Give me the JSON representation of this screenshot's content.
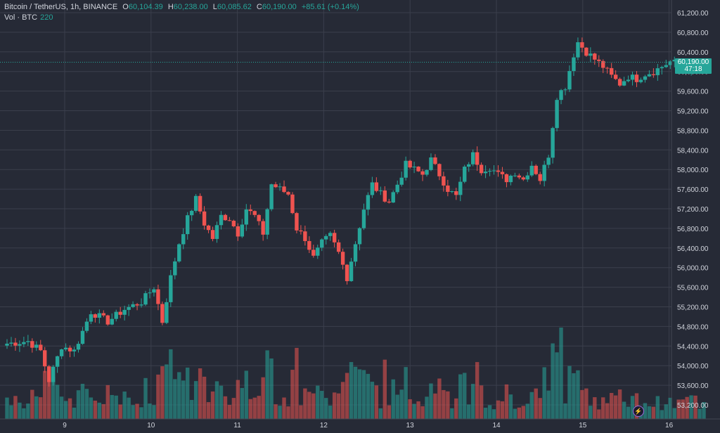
{
  "legend": {
    "symbol": "Bitcoin / TetherUS, 1h, BINANCE",
    "open_label": "O",
    "open": "60,104.39",
    "high_label": "H",
    "high": "60,238.00",
    "low_label": "L",
    "low": "60,085.62",
    "close_label": "C",
    "close": "60,190.00",
    "change": "+85.61 (+0.14%)"
  },
  "volume": {
    "label": "Vol · BTC",
    "value": "220"
  },
  "price_tag": {
    "price": "60,190.00",
    "countdown": "47:18"
  },
  "colors": {
    "up": "#26a69a",
    "down": "#ef5350",
    "background": "#262a36",
    "grid": "#3b3f4c"
  },
  "icons": [
    "lightning-icon"
  ],
  "chart_data": {
    "type": "candlestick",
    "title": "",
    "x_ticks": [
      "9",
      "10",
      "11",
      "12",
      "13",
      "14",
      "15",
      "16"
    ],
    "y_ticks": [
      "61,200.00",
      "60,800.00",
      "60,400.00",
      "60,000.00",
      "59,600.00",
      "59,200.00",
      "58,800.00",
      "58,400.00",
      "58,000.00",
      "57,600.00",
      "57,200.00",
      "56,800.00",
      "56,400.00",
      "56,000.00",
      "55,600.00",
      "55,200.00",
      "54,800.00",
      "54,400.00",
      "54,000.00",
      "53,600.00",
      "53,200.00"
    ],
    "y_range": [
      53000,
      61400
    ],
    "last_price": 60190,
    "anchors": [
      [
        0,
        54450
      ],
      [
        5,
        54500
      ],
      [
        8,
        54300
      ],
      [
        10,
        53700
      ],
      [
        13,
        54400
      ],
      [
        16,
        54300
      ],
      [
        20,
        55100
      ],
      [
        24,
        54900
      ],
      [
        28,
        55150
      ],
      [
        32,
        55300
      ],
      [
        35,
        55600
      ],
      [
        37,
        54900
      ],
      [
        39,
        55800
      ],
      [
        41,
        56500
      ],
      [
        43,
        57000
      ],
      [
        45,
        57400
      ],
      [
        47,
        56900
      ],
      [
        49,
        56600
      ],
      [
        51,
        57050
      ],
      [
        53,
        57000
      ],
      [
        55,
        56700
      ],
      [
        57,
        57200
      ],
      [
        59,
        57050
      ],
      [
        61,
        56700
      ],
      [
        63,
        57700
      ],
      [
        65,
        57600
      ],
      [
        67,
        57500
      ],
      [
        69,
        56800
      ],
      [
        71,
        56600
      ],
      [
        73,
        56200
      ],
      [
        75,
        56500
      ],
      [
        77,
        56650
      ],
      [
        79,
        56300
      ],
      [
        81,
        55800
      ],
      [
        83,
        56500
      ],
      [
        85,
        57200
      ],
      [
        87,
        57700
      ],
      [
        89,
        57500
      ],
      [
        91,
        57350
      ],
      [
        93,
        57700
      ],
      [
        95,
        58100
      ],
      [
        97,
        58000
      ],
      [
        99,
        57900
      ],
      [
        101,
        58200
      ],
      [
        103,
        57900
      ],
      [
        105,
        57600
      ],
      [
        107,
        57450
      ],
      [
        109,
        58000
      ],
      [
        111,
        58300
      ],
      [
        113,
        58000
      ],
      [
        115,
        58050
      ],
      [
        117,
        57900
      ],
      [
        119,
        57800
      ],
      [
        121,
        57950
      ],
      [
        123,
        57800
      ],
      [
        125,
        58100
      ],
      [
        127,
        57800
      ],
      [
        129,
        58300
      ],
      [
        131,
        59500
      ],
      [
        133,
        59700
      ],
      [
        135,
        60350
      ],
      [
        136,
        60600
      ],
      [
        138,
        60400
      ],
      [
        140,
        60250
      ],
      [
        142,
        60100
      ],
      [
        144,
        59900
      ],
      [
        146,
        59750
      ],
      [
        148,
        59900
      ],
      [
        150,
        59850
      ],
      [
        152,
        59950
      ],
      [
        154,
        60000
      ],
      [
        156,
        60100
      ],
      [
        158,
        60200
      ],
      [
        160,
        60150
      ],
      [
        162,
        60100
      ],
      [
        164,
        60050
      ],
      [
        166,
        60190
      ]
    ],
    "volume_max_btc": 3000
  }
}
